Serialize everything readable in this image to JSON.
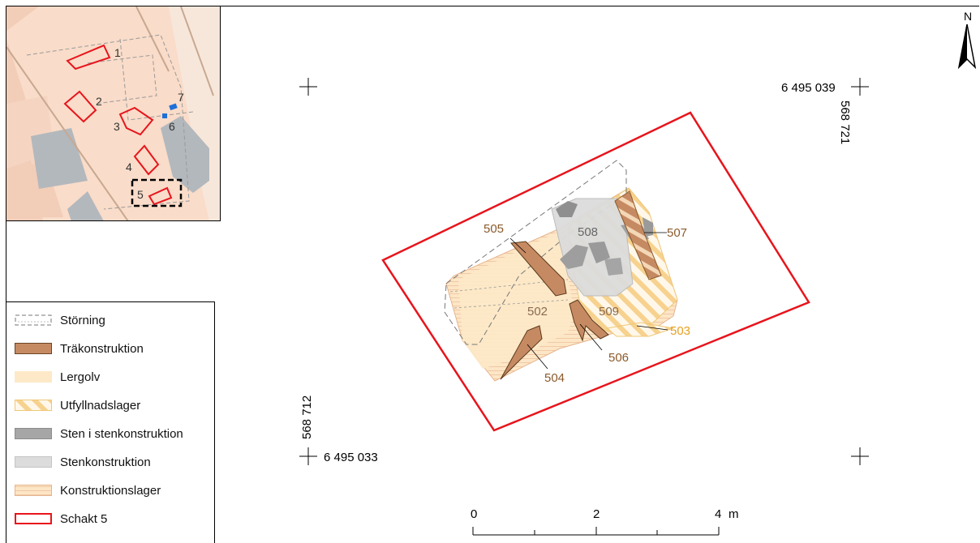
{
  "map": {
    "north_label": "N",
    "coordinates": {
      "top_right_northing": "6 495 039",
      "top_right_easting": "568 721",
      "bottom_left_northing": "6 495 033",
      "bottom_left_easting": "568 712"
    },
    "features": [
      {
        "id": "502",
        "color": "#8a6a52"
      },
      {
        "id": "503",
        "color": "#e8a020"
      },
      {
        "id": "504",
        "color": "#8b5a2b"
      },
      {
        "id": "505",
        "color": "#8b5a2b"
      },
      {
        "id": "506",
        "color": "#8b5a2b"
      },
      {
        "id": "507",
        "color": "#8b5a2b"
      },
      {
        "id": "508",
        "color": "#666666"
      },
      {
        "id": "509",
        "color": "#8a6a52"
      }
    ],
    "scale_bar": {
      "ticks": [
        "0",
        "2",
        "4"
      ],
      "unit": "m"
    }
  },
  "inset": {
    "labels": [
      "1",
      "2",
      "3",
      "4",
      "5",
      "6",
      "7"
    ],
    "highlight_color": "#e8141c",
    "marker_color": "#1e6fd9"
  },
  "legend": {
    "items": [
      {
        "label": "Störning",
        "type": "disturbance"
      },
      {
        "label": "Träkonstruktion",
        "type": "wood",
        "color": "#c68a63"
      },
      {
        "label": "Lergolv",
        "type": "clay",
        "color": "#fde9c8"
      },
      {
        "label": "Utfyllnadslager",
        "type": "fill",
        "color": "#f6cf84"
      },
      {
        "label": "Sten i stenkonstruktion",
        "type": "stone",
        "color": "#a6a6a6"
      },
      {
        "label": "Stenkonstruktion",
        "type": "stone-construction",
        "color": "#dcdcdc"
      },
      {
        "label": "Konstruktionslager",
        "type": "construction-layer",
        "color": "#f3cdb0"
      },
      {
        "label": "Schakt 5",
        "type": "trench",
        "color": "#e8141c"
      }
    ]
  }
}
